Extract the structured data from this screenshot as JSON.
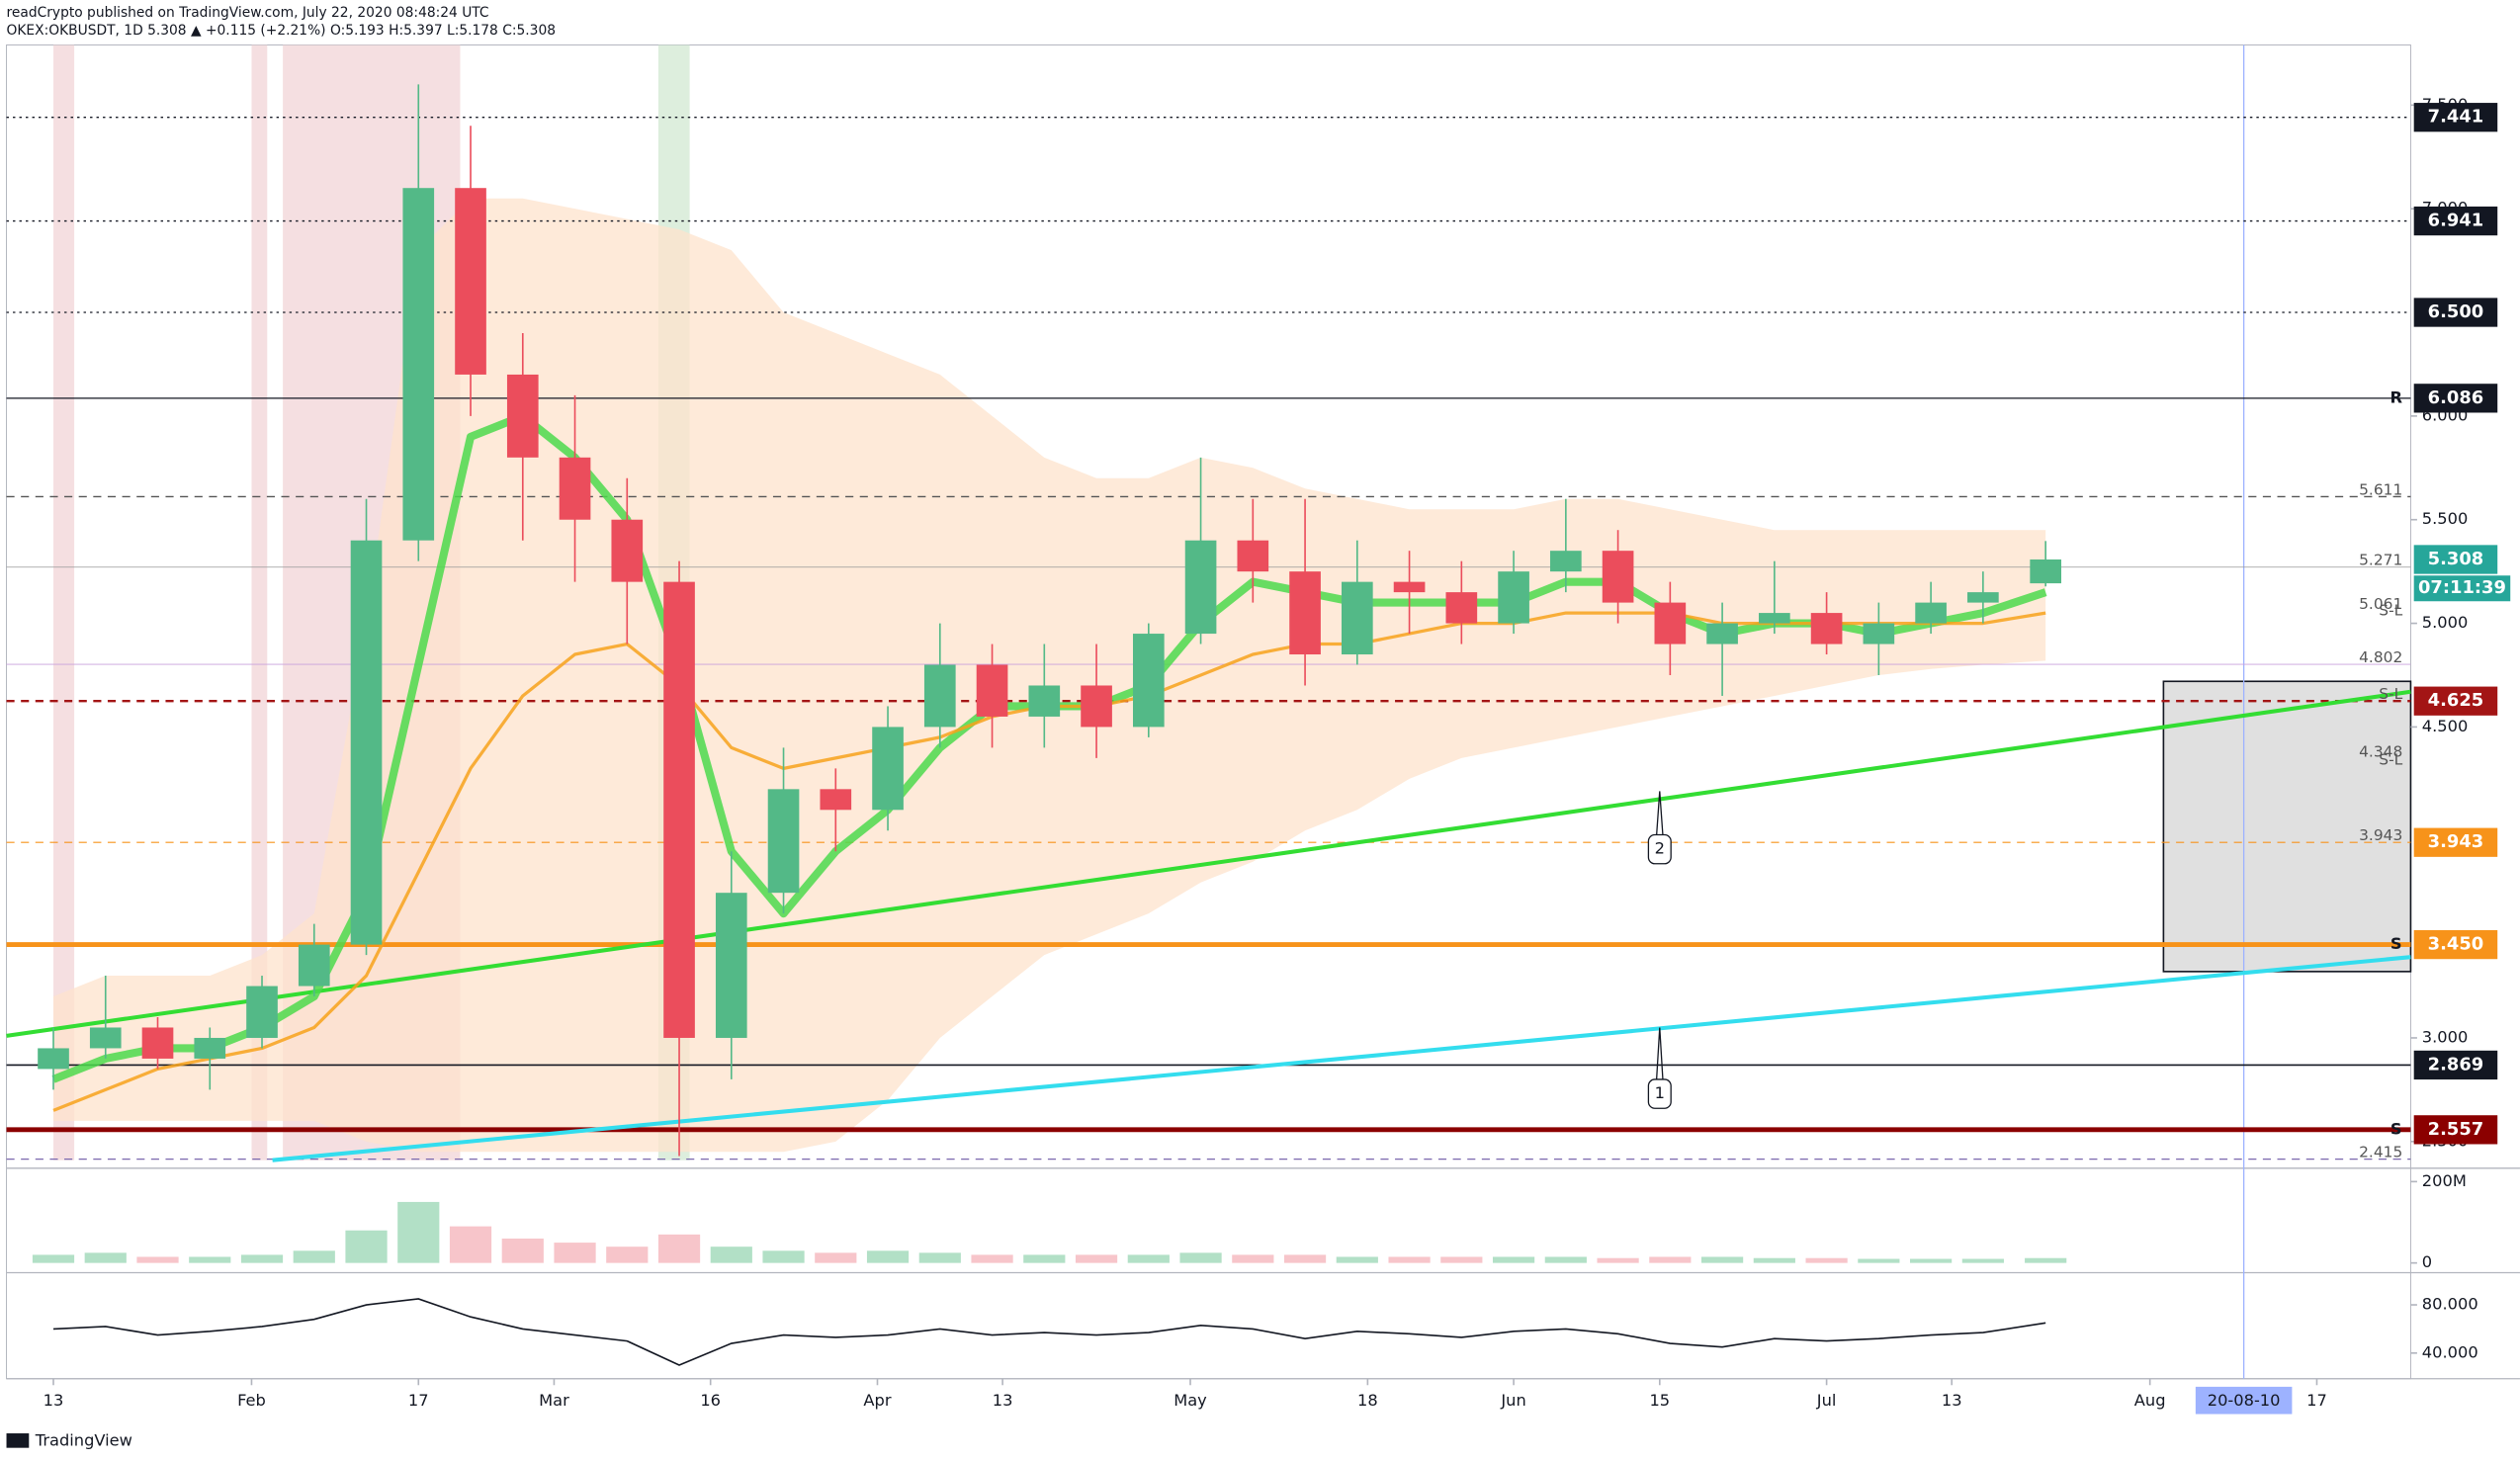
{
  "chart_data": {
    "type": "candlestick",
    "publisher": "readCrypto published on TradingView.com, July 22, 2020 08:48:24 UTC",
    "title": "OKEX:OKBUSDT, 1D  5.308 ▲ +0.115 (+2.21%) O:5.193 H:5.397 L:5.178 C:5.308",
    "brand": "TradingView",
    "x": [
      0,
      5,
      10,
      15,
      20,
      25,
      30,
      35,
      40,
      45,
      50,
      55,
      60,
      65,
      70,
      75,
      80,
      85,
      90,
      95,
      100,
      105,
      110,
      115,
      120,
      125,
      130,
      135,
      140,
      145,
      150,
      155,
      160,
      165,
      170,
      175,
      180,
      185,
      191
    ],
    "open": [
      2.85,
      2.95,
      3.05,
      2.9,
      3.0,
      3.25,
      3.45,
      5.4,
      7.1,
      6.2,
      5.8,
      5.5,
      5.2,
      3.0,
      3.7,
      4.2,
      4.1,
      4.5,
      4.8,
      4.55,
      4.7,
      4.5,
      4.95,
      5.4,
      5.25,
      4.85,
      5.2,
      5.15,
      5.0,
      5.25,
      5.35,
      5.1,
      4.9,
      5.0,
      5.05,
      4.9,
      5.0,
      5.1,
      5.193
    ],
    "high": [
      3.05,
      3.3,
      3.1,
      3.05,
      3.3,
      3.55,
      5.6,
      7.6,
      7.4,
      6.4,
      6.1,
      5.7,
      5.3,
      3.9,
      4.4,
      4.3,
      4.6,
      5.0,
      4.9,
      4.9,
      4.9,
      5.0,
      5.8,
      5.6,
      5.6,
      5.4,
      5.35,
      5.3,
      5.35,
      5.6,
      5.45,
      5.2,
      5.1,
      5.3,
      5.15,
      5.1,
      5.2,
      5.25,
      5.397
    ],
    "low": [
      2.75,
      2.9,
      2.85,
      2.75,
      2.95,
      3.2,
      3.4,
      5.3,
      6.0,
      5.4,
      5.2,
      4.9,
      2.43,
      2.8,
      3.6,
      3.9,
      4.0,
      4.4,
      4.4,
      4.4,
      4.35,
      4.45,
      4.9,
      5.1,
      4.7,
      4.8,
      4.95,
      4.9,
      4.95,
      5.15,
      5.0,
      4.75,
      4.65,
      4.95,
      4.85,
      4.75,
      4.95,
      5.0,
      5.178
    ],
    "close": [
      2.95,
      3.05,
      2.9,
      3.0,
      3.25,
      3.45,
      5.4,
      7.1,
      6.2,
      5.8,
      5.5,
      5.2,
      3.0,
      3.7,
      4.2,
      4.1,
      4.5,
      4.8,
      4.55,
      4.7,
      4.5,
      4.95,
      5.4,
      5.25,
      4.85,
      5.2,
      5.15,
      5.0,
      5.25,
      5.35,
      5.1,
      4.9,
      5.0,
      5.05,
      4.9,
      5.0,
      5.1,
      5.15,
      5.308
    ],
    "up_color": "#53b987",
    "down_color": "#eb4d5c",
    "ma": [
      {
        "color": "#4cd94c",
        "width": 5,
        "values": [
          2.8,
          2.9,
          2.95,
          2.95,
          3.05,
          3.2,
          3.7,
          4.8,
          5.9,
          6.0,
          5.8,
          5.5,
          4.8,
          3.9,
          3.6,
          3.9,
          4.1,
          4.4,
          4.6,
          4.6,
          4.6,
          4.7,
          5.0,
          5.2,
          5.15,
          5.1,
          5.1,
          5.1,
          5.1,
          5.2,
          5.2,
          5.05,
          4.95,
          5.0,
          5.0,
          4.95,
          5.0,
          5.05,
          5.15
        ]
      },
      {
        "color": "#f7a21b",
        "width": 2,
        "values": [
          2.65,
          2.75,
          2.85,
          2.9,
          2.95,
          3.05,
          3.3,
          3.8,
          4.3,
          4.65,
          4.85,
          4.9,
          4.7,
          4.4,
          4.3,
          4.35,
          4.4,
          4.45,
          4.55,
          4.6,
          4.6,
          4.65,
          4.75,
          4.85,
          4.9,
          4.9,
          4.95,
          5.0,
          5.0,
          5.05,
          5.05,
          5.05,
          5.0,
          5.0,
          5.0,
          5.0,
          5.0,
          5.0,
          5.05
        ]
      }
    ],
    "band": {
      "color": "#fde3cc",
      "upper": [
        3.2,
        3.3,
        3.3,
        3.3,
        3.4,
        3.6,
        5.0,
        6.8,
        7.05,
        7.05,
        7.0,
        6.95,
        6.9,
        6.8,
        6.5,
        6.4,
        6.3,
        6.2,
        6.0,
        5.8,
        5.7,
        5.7,
        5.8,
        5.75,
        5.65,
        5.6,
        5.55,
        5.55,
        5.55,
        5.6,
        5.6,
        5.55,
        5.5,
        5.45,
        5.45,
        5.45,
        5.45,
        5.45,
        5.45
      ],
      "lower": [
        2.6,
        2.6,
        2.6,
        2.6,
        2.6,
        2.6,
        2.5,
        2.45,
        2.45,
        2.45,
        2.45,
        2.45,
        2.45,
        2.45,
        2.45,
        2.5,
        2.7,
        3.0,
        3.2,
        3.4,
        3.5,
        3.6,
        3.75,
        3.85,
        4.0,
        4.1,
        4.25,
        4.35,
        4.4,
        4.45,
        4.5,
        4.55,
        4.6,
        4.65,
        4.7,
        4.75,
        4.78,
        4.8,
        4.82
      ]
    },
    "xlim": [
      -4.5,
      226
    ],
    "xticks": [
      {
        "value": 0,
        "label": "13"
      },
      {
        "value": 19,
        "label": "Feb"
      },
      {
        "value": 35,
        "label": "17"
      },
      {
        "value": 48,
        "label": "Mar"
      },
      {
        "value": 63,
        "label": "16"
      },
      {
        "value": 79,
        "label": "Apr"
      },
      {
        "value": 91,
        "label": "13"
      },
      {
        "value": 109,
        "label": "May"
      },
      {
        "value": 126,
        "label": "18"
      },
      {
        "value": 140,
        "label": "Jun"
      },
      {
        "value": 154,
        "label": "15"
      },
      {
        "value": 170,
        "label": "Jul"
      },
      {
        "value": 182,
        "label": "13"
      },
      {
        "value": 201,
        "label": "Aug"
      },
      {
        "value": 217,
        "label": "17"
      }
    ],
    "ylim": [
      2.41,
      7.79
    ],
    "yticks": [
      {
        "value": 7.5,
        "label": "7.500"
      },
      {
        "value": 7,
        "label": "7.000"
      },
      {
        "value": 6,
        "label": "6.000"
      },
      {
        "value": 5.5,
        "label": "5.500"
      },
      {
        "value": 5,
        "label": "5.000"
      },
      {
        "value": 4.5,
        "label": "4.500"
      },
      {
        "value": 3,
        "label": "3.000"
      },
      {
        "value": 2.5,
        "label": "2.500"
      }
    ],
    "highlights": [
      {
        "x": [
          0,
          2
        ],
        "color": "#f2d7da"
      },
      {
        "x": [
          19,
          20.5
        ],
        "color": "#f2d7da"
      },
      {
        "x": [
          22,
          39
        ],
        "color": "#f2d7da"
      },
      {
        "x": [
          58,
          61
        ],
        "color": "#d5ead5"
      }
    ],
    "levels": [
      {
        "value": 7.441,
        "label": "7.441",
        "color": "#131722",
        "line": "dotted",
        "width": 0.8
      },
      {
        "value": 6.941,
        "label": "6.941",
        "color": "#131722",
        "line": "dotted",
        "width": 0.8
      },
      {
        "value": 6.5,
        "label": "6.500",
        "color": "#131722",
        "line": "dotted",
        "width": 0.8
      },
      {
        "value": 6.086,
        "label": "6.086",
        "color": "#131722",
        "line": "solid",
        "width": 0.8
      },
      {
        "value": 5.611,
        "color": "#555555",
        "line": "dashed",
        "width": 0.8
      },
      {
        "value": 5.271,
        "color": "#999999",
        "line": "solid",
        "width": 0.5
      },
      {
        "value": 4.802,
        "color": "#c9a0dc",
        "line": "solid",
        "width": 0.5
      },
      {
        "value": 4.625,
        "label": "4.625",
        "color": "#a31515",
        "line": "dashed",
        "width": 1.5
      },
      {
        "value": 3.943,
        "label": "3.943",
        "color": "#f7931a",
        "line": "dashed",
        "width": 0.7
      },
      {
        "value": 3.45,
        "label": "3.450",
        "color": "#f7931a",
        "line": "solid",
        "width": 3
      },
      {
        "value": 2.869,
        "label": "2.869",
        "color": "#131722",
        "line": "solid",
        "width": 1
      },
      {
        "value": 2.557,
        "label": "2.557",
        "color": "#8b0000",
        "line": "solid",
        "width": 3
      },
      {
        "value": 2.415,
        "color": "#7b68ae",
        "line": "dashed",
        "width": 0.8
      }
    ],
    "last_price": {
      "value": 5.308,
      "label": "5.308",
      "countdown": "07:11:39",
      "color": "#26a69a"
    },
    "notes": [
      {
        "value": 5.611
      },
      {
        "value": 5.271
      },
      {
        "value": 5.061
      },
      {
        "value": 5.03,
        "label": "S-L"
      },
      {
        "value": 4.802
      },
      {
        "value": 4.625,
        "label": "S-L"
      },
      {
        "value": 4.348
      },
      {
        "value": 4.31,
        "label": "S-L"
      },
      {
        "value": 3.943
      },
      {
        "value": 2.415
      }
    ],
    "markers": [
      {
        "value": 6.086,
        "label": "R",
        "color": "#e53935"
      },
      {
        "value": 3.45,
        "label": "S",
        "color": "#f7931a"
      },
      {
        "value": 2.557,
        "label": "S",
        "color": "#4caf50"
      }
    ],
    "trendlines": [
      {
        "color": "#33dd33",
        "x": [
          -4.5,
          226
        ],
        "y": [
          3.01,
          4.67
        ]
      },
      {
        "color": "#33ddee",
        "x": [
          21,
          226
        ],
        "y": [
          2.41,
          3.39
        ]
      }
    ],
    "box": {
      "x": [
        202.3,
        226
      ],
      "y": [
        3.32,
        4.72
      ]
    },
    "cursor": {
      "value": 210,
      "label": "20-08-10"
    },
    "annotations": [
      {
        "text": "1",
        "x": 154,
        "y": 2.73,
        "tip": 3.05
      },
      {
        "text": "2",
        "x": 154,
        "y": 3.91,
        "tip": 4.19
      }
    ],
    "volume": {
      "values": [
        20,
        25,
        15,
        15,
        20,
        30,
        80,
        150,
        90,
        60,
        50,
        40,
        70,
        40,
        30,
        25,
        30,
        25,
        20,
        20,
        20,
        20,
        25,
        20,
        20,
        15,
        15,
        15,
        15,
        15,
        12,
        15,
        15,
        12,
        12,
        10,
        10,
        10,
        12
      ],
      "ylim": [
        -16,
        229
      ],
      "yticks": [
        {
          "value": 200,
          "label": "200M"
        },
        0
      ],
      "color": "#9fd8b8"
    },
    "rsi": {
      "values": [
        60,
        62,
        55,
        58,
        62,
        68,
        80,
        85,
        70,
        60,
        55,
        50,
        30,
        48,
        55,
        53,
        55,
        60,
        55,
        57,
        55,
        57,
        63,
        60,
        52,
        58,
        56,
        53,
        58,
        60,
        56,
        48,
        45,
        52,
        50,
        52,
        55,
        57,
        65
      ],
      "ylim": [
        18.7,
        102.7
      ],
      "yticks": [
        {
          "value": 80,
          "label": "80.000"
        },
        {
          "value": 40,
          "label": "40.000"
        }
      ],
      "color": "#131722"
    }
  }
}
